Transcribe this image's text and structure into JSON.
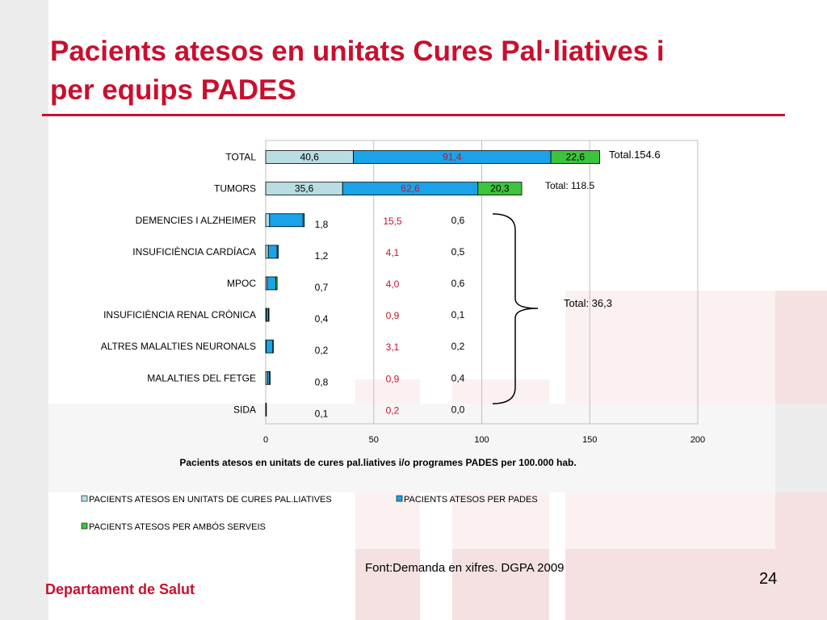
{
  "slide": {
    "title_line1": "Pacients atesos en unitats Cures Pal·liatives i",
    "title_line2": "per equips PADES",
    "source": "Font:Demanda en xifres. DGPA 2009",
    "department": "Departament de Salut",
    "page_number": "24"
  },
  "chart_data": {
    "type": "bar",
    "orientation": "horizontal",
    "stacked": true,
    "categories": [
      "TOTAL",
      "TUMORS",
      "DEMENCIES I ALZHEIMER",
      "INSUFICIÈNCIA CARDÍACA",
      "MPOC",
      "INSUFICIÈNCIA RENAL CRÒNICA",
      "ALTRES MALALTIES NEURONALS",
      "MALALTIES DEL FETGE",
      "SIDA"
    ],
    "series": [
      {
        "name": "PACIENTS ATESOS EN UNITATS DE CURES PAL.LIATIVES",
        "color": "#b9dde2",
        "label_color": "#000000",
        "values": [
          40.6,
          35.6,
          1.8,
          1.2,
          0.7,
          0.4,
          0.2,
          0.8,
          0.1
        ],
        "labels": [
          "40,6",
          "35,6",
          "1,8",
          "1,2",
          "0,7",
          "0,4",
          "0,2",
          "0,8",
          "0,1"
        ]
      },
      {
        "name": "PACIENTS ATESOS PER PADES",
        "color": "#1aa3e8",
        "label_color": "#c8102e",
        "values": [
          91.4,
          62.6,
          15.5,
          4.1,
          4.0,
          0.9,
          3.1,
          0.9,
          0.2
        ],
        "labels": [
          "91,4",
          "62,6",
          "15,5",
          "4,1",
          "4,0",
          "0,9",
          "3,1",
          "0,9",
          "0,2"
        ]
      },
      {
        "name": "PACIENTS ATESOS PER AMBÓS SERVEIS",
        "color": "#3cc43c",
        "label_color": "#000000",
        "values": [
          22.6,
          20.3,
          0.6,
          0.5,
          0.6,
          0.1,
          0.2,
          0.4,
          0.0
        ],
        "labels": [
          "22,6",
          "20,3",
          "0,6",
          "0,5",
          "0,6",
          "0,1",
          "0,2",
          "0,4",
          "0,0"
        ]
      }
    ],
    "xlabel": "Pacients atesos en unitats de cures pal.liatives i/o programes PADES per 100.000 hab.",
    "xlim": [
      0,
      200
    ],
    "xticks": [
      0,
      50,
      100,
      150,
      200
    ],
    "grid": "vertical major",
    "legend_position": "bottom",
    "annotations": {
      "total_all": "Total.154.6",
      "total_tumors": "Total: 118.5",
      "total_group": "Total: 36,3"
    }
  }
}
